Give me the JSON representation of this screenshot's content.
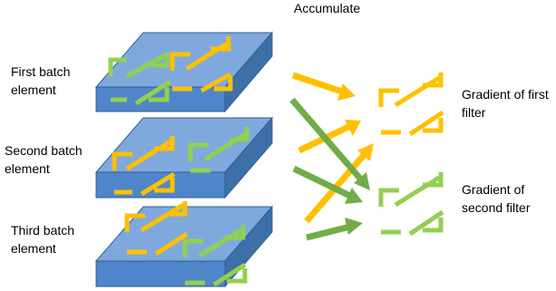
{
  "header": {
    "accumulate_label": "Accumulate"
  },
  "batch_elements": [
    {
      "label_line1": "First batch",
      "label_line2": "element"
    },
    {
      "label_line1": "Second batch",
      "label_line2": "element"
    },
    {
      "label_line1": "Third batch",
      "label_line2": "element"
    }
  ],
  "gradients": [
    {
      "label_line1": "Gradient of first",
      "label_line2": "filter",
      "color": "#FFC000"
    },
    {
      "label_line1": "Gradient of",
      "label_line2": "second filter",
      "color": "#92D050"
    }
  ],
  "colors": {
    "slab_top": "#7fa9dc",
    "slab_front": "#4f86c9",
    "slab_side": "#3d6fa8",
    "slab_edge": "#2e5f93",
    "filter_orange": "#FFC000",
    "filter_green": "#92D050",
    "arrow_orange": "#FFC000",
    "arrow_green": "#70AD47"
  }
}
